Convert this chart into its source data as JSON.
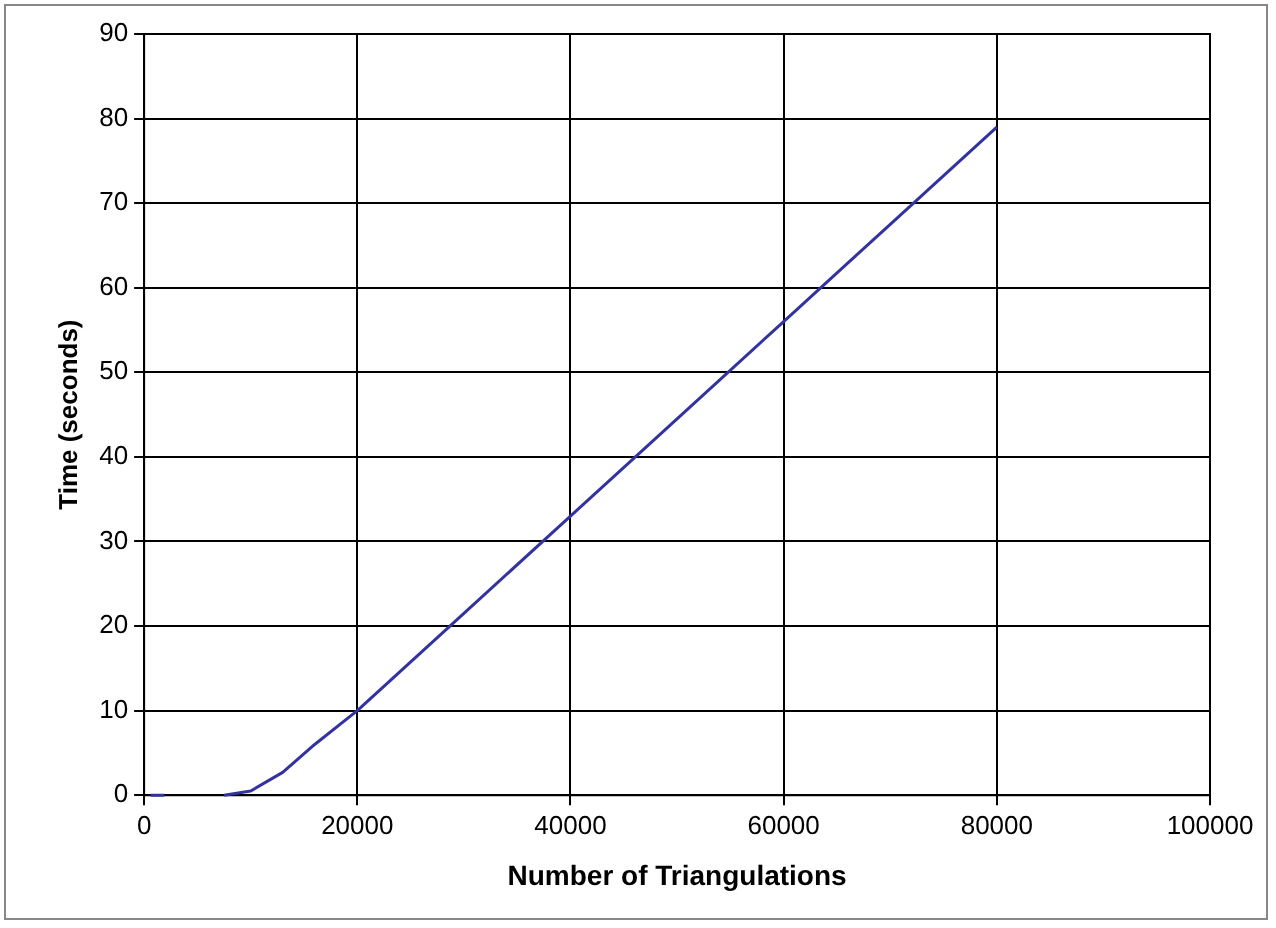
{
  "chart_data": {
    "type": "line",
    "xlabel": "Number of Triangulations",
    "ylabel": "Time (seconds)",
    "x": [
      600,
      1900,
      5000,
      7500,
      10000,
      13000,
      16000,
      20000,
      30000,
      40000,
      50000,
      60000,
      70000,
      80000
    ],
    "series": [
      {
        "color": "#3333a0",
        "values": [
          0,
          0,
          null,
          0,
          0.5,
          2.7,
          6,
          10,
          21.5,
          33,
          44.5,
          56,
          67.5,
          79
        ]
      }
    ],
    "xlim": [
      0,
      100000
    ],
    "xticks": [
      0,
      20000,
      40000,
      60000,
      80000,
      100000
    ],
    "ylim": [
      0,
      90
    ],
    "yticks": [
      0,
      10,
      20,
      30,
      40,
      50,
      60,
      70,
      80,
      90
    ],
    "grid": true,
    "legend": false,
    "marker": "none",
    "line_style": "solid"
  }
}
